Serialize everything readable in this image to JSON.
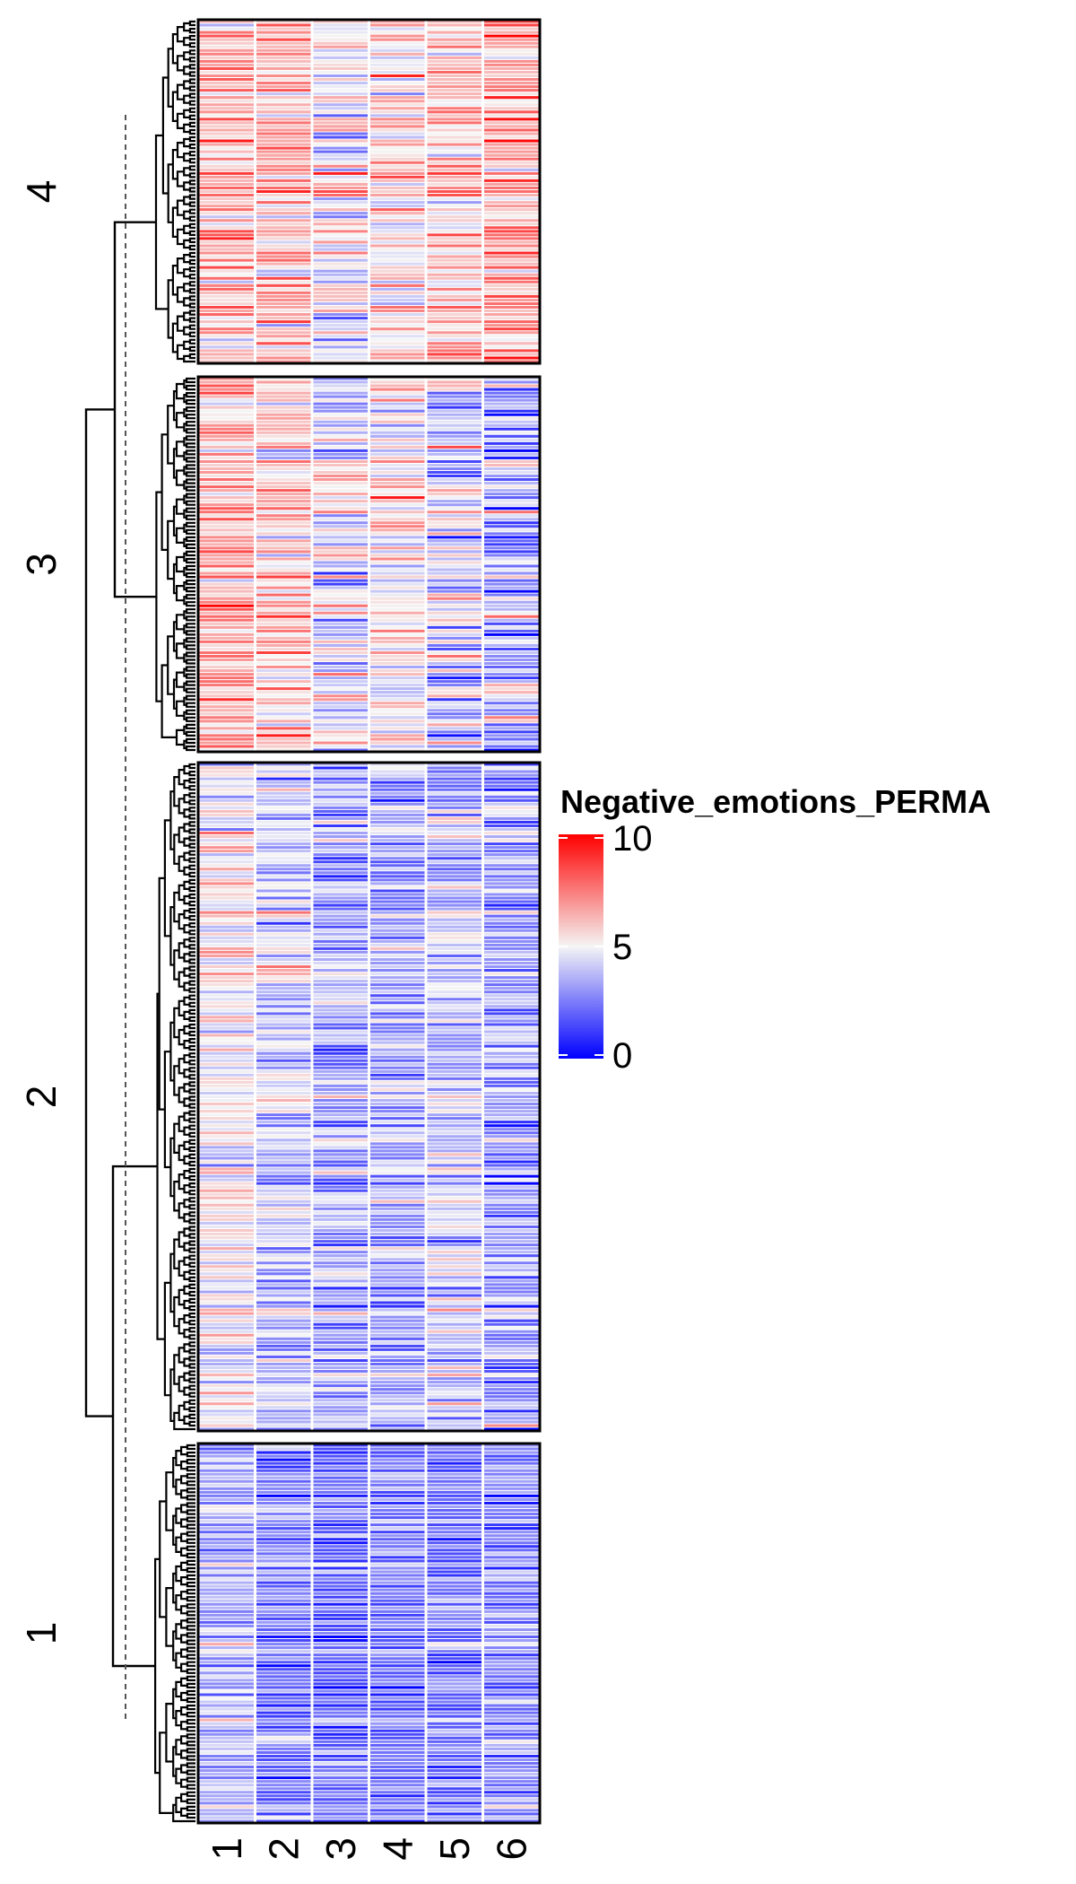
{
  "chart_data": {
    "type": "heatmap",
    "title": "",
    "columns": [
      "1",
      "2",
      "3",
      "4",
      "5",
      "6"
    ],
    "row_clusters": [
      {
        "label": "4",
        "row_count": 95,
        "column_means": [
          6.4,
          6.3,
          5.0,
          5.8,
          6.1,
          6.8
        ],
        "column_spread": [
          1.6,
          1.7,
          1.7,
          1.7,
          1.6,
          1.4
        ]
      },
      {
        "label": "3",
        "row_count": 104,
        "column_means": [
          6.6,
          6.0,
          4.6,
          5.2,
          4.2,
          3.4
        ],
        "column_spread": [
          1.4,
          1.7,
          1.8,
          1.7,
          2.3,
          2.2
        ]
      },
      {
        "label": "2",
        "row_count": 185,
        "column_means": [
          5.0,
          3.9,
          3.3,
          3.2,
          4.0,
          3.0
        ],
        "column_spread": [
          1.4,
          1.5,
          1.5,
          1.4,
          1.5,
          1.7
        ]
      },
      {
        "label": "1",
        "row_count": 105,
        "column_means": [
          3.6,
          2.6,
          2.3,
          2.5,
          2.3,
          2.7
        ],
        "column_spread": [
          1.1,
          1.2,
          1.1,
          1.1,
          1.1,
          1.1
        ]
      }
    ],
    "legend": {
      "title": "Negative_emotions_PERMA",
      "min": 0,
      "mid": 5,
      "max": 10,
      "ticks": [
        "10",
        "5",
        "0"
      ],
      "colors": {
        "low": "#0000ff",
        "mid": "#f5f5f5",
        "high": "#ff0000"
      }
    },
    "row_dendrogram": true,
    "cut_line": "dashed"
  }
}
